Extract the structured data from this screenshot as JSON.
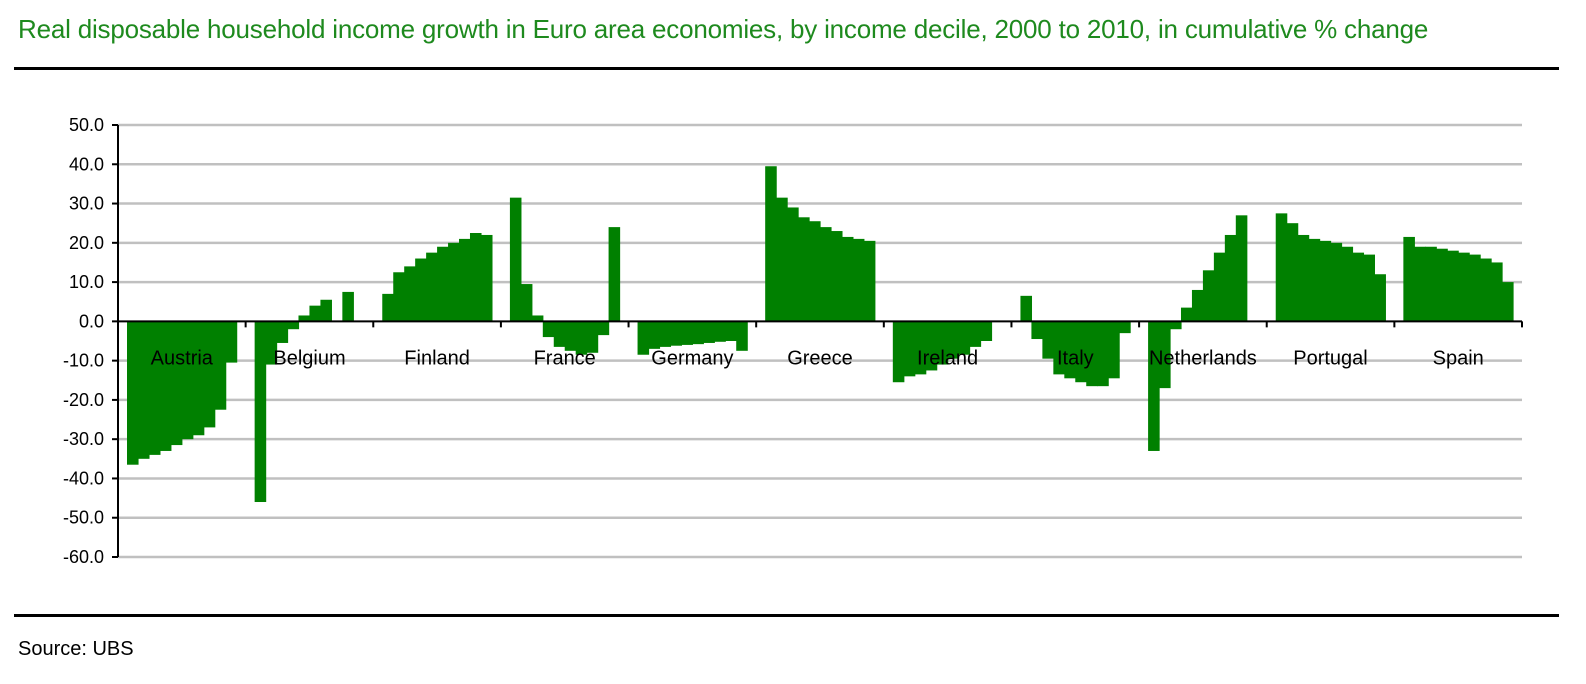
{
  "title": "Real disposable household income growth in Euro area economies, by income decile, 2000 to 2010, in cumulative % change",
  "source": "Source: UBS",
  "colors": {
    "bar": "#008000",
    "title": "#1e8a1e",
    "grid": "#c0c0c0",
    "axis": "#000000"
  },
  "chart_data": {
    "type": "bar",
    "title": "Real disposable household income growth in Euro area economies, by income decile, 2000 to 2010, in cumulative % change",
    "xlabel": "",
    "ylabel": "",
    "ylim": [
      -60,
      50
    ],
    "y_ticks": [
      "50.0",
      "40.0",
      "30.0",
      "20.0",
      "10.0",
      "0.0",
      "-10.0",
      "-20.0",
      "-30.0",
      "-40.0",
      "-50.0",
      "-60.0"
    ],
    "grid": true,
    "categories": [
      "Austria",
      "Belgium",
      "Finland",
      "France",
      "Germany",
      "Greece",
      "Ireland",
      "Italy",
      "Netherlands",
      "Portugal",
      "Spain"
    ],
    "groups": [
      {
        "label": "Austria",
        "values": [
          -36.5,
          -35,
          -34,
          -33,
          -31.5,
          -30,
          -29,
          -27,
          -22.5,
          -10.5
        ]
      },
      {
        "label": "Belgium",
        "values": [
          -46,
          -11,
          -5.5,
          -2,
          1.5,
          4,
          5.5,
          0,
          7.5,
          0
        ]
      },
      {
        "label": "Finland",
        "values": [
          7,
          12.5,
          14,
          16,
          17.5,
          19,
          20,
          21,
          22.5,
          22
        ]
      },
      {
        "label": "France",
        "values": [
          31.5,
          9.5,
          1.5,
          -4,
          -6.5,
          -7.5,
          -8.5,
          -8,
          -3.5,
          24
        ]
      },
      {
        "label": "Germany",
        "values": [
          -8.5,
          -7,
          -6.5,
          -6.2,
          -6,
          -5.8,
          -5.5,
          -5.2,
          -5,
          -7.5
        ]
      },
      {
        "label": "Greece",
        "values": [
          39.5,
          31.5,
          29,
          26.5,
          25.5,
          24,
          23,
          21.5,
          21,
          20.5
        ]
      },
      {
        "label": "Ireland",
        "values": [
          -15.5,
          -14,
          -13.5,
          -12.5,
          -11,
          -9.5,
          -8.5,
          -6.5,
          -5,
          0
        ]
      },
      {
        "label": "Italy",
        "values": [
          6.5,
          -4.5,
          -9.5,
          -13.5,
          -14.5,
          -15.5,
          -16.5,
          -16.5,
          -14.5,
          -3
        ]
      },
      {
        "label": "Netherlands",
        "values": [
          -33,
          -17,
          -2,
          3.5,
          8,
          13,
          17.5,
          22,
          27,
          0
        ]
      },
      {
        "label": "Portugal",
        "values": [
          27.5,
          25,
          22,
          21,
          20.5,
          20,
          19,
          17.5,
          17,
          12
        ]
      },
      {
        "label": "Spain",
        "values": [
          21.5,
          19,
          19,
          18.5,
          18,
          17.5,
          17,
          16,
          15,
          10
        ]
      }
    ]
  }
}
